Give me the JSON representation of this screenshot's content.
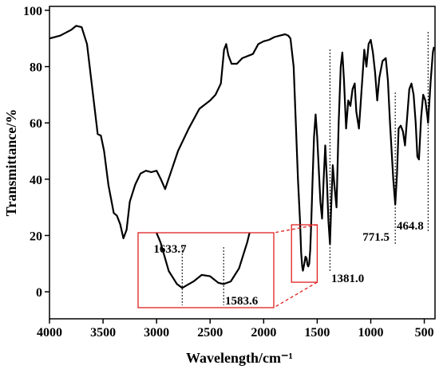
{
  "chart_data": {
    "type": "line",
    "xlabel": "Wavelength/cm⁻¹",
    "ylabel": "Transmittance/%",
    "xlim": [
      4000,
      400
    ],
    "ylim": [
      -9.6,
      101.4
    ],
    "xticks": [
      4000,
      3500,
      3000,
      2500,
      2000,
      1500,
      1000,
      500
    ],
    "yticks": [
      0,
      20,
      40,
      60,
      80,
      100
    ],
    "series": [
      {
        "color": "#000000",
        "x": [
          4000,
          3900,
          3800,
          3750,
          3700,
          3650,
          3600,
          3550,
          3520,
          3490,
          3450,
          3400,
          3370,
          3340,
          3310,
          3280,
          3250,
          3200,
          3150,
          3100,
          3050,
          3000,
          2960,
          2920,
          2880,
          2800,
          2700,
          2600,
          2500,
          2450,
          2400,
          2370,
          2350,
          2330,
          2300,
          2250,
          2200,
          2100,
          2050,
          2000,
          1950,
          1900,
          1850,
          1800,
          1770,
          1750,
          1720,
          1700,
          1680,
          1660,
          1650,
          1640,
          1633.7,
          1620,
          1610,
          1600,
          1590,
          1583.6,
          1575,
          1565,
          1555,
          1545,
          1530,
          1515,
          1500,
          1470,
          1455,
          1440,
          1425,
          1410,
          1395,
          1381,
          1370,
          1355,
          1340,
          1320,
          1300,
          1280,
          1265,
          1250,
          1230,
          1210,
          1190,
          1170,
          1150,
          1135,
          1110,
          1080,
          1060,
          1040,
          1020,
          1000,
          980,
          960,
          940,
          920,
          890,
          860,
          840,
          820,
          790,
          771.5,
          755,
          740,
          720,
          700,
          680,
          660,
          640,
          620,
          600,
          580,
          565,
          550,
          530,
          510,
          490,
          470,
          464.8,
          440,
          420,
          410
        ],
        "values": [
          90,
          91,
          93,
          94.5,
          94,
          88,
          72,
          56,
          55.5,
          50,
          38,
          28,
          27,
          24,
          19,
          22,
          32,
          38,
          42,
          43,
          42.5,
          43,
          40,
          36.5,
          41,
          50,
          58,
          65,
          68,
          70,
          74,
          86,
          88,
          84,
          81,
          81,
          83,
          84.5,
          88,
          89,
          89.5,
          90.5,
          91,
          91.5,
          91,
          90,
          80,
          60,
          40,
          25,
          14,
          9,
          7.5,
          10,
          12.5,
          12,
          9.5,
          9,
          10,
          15,
          25,
          38,
          55,
          63,
          55,
          32,
          26,
          40,
          52,
          40,
          25,
          17,
          30,
          45,
          38,
          30,
          60,
          80,
          85,
          75,
          58,
          68,
          66,
          72,
          74,
          64,
          58,
          75,
          86,
          80,
          88,
          89.5,
          85,
          78,
          68,
          76,
          82,
          83,
          75,
          60,
          40,
          31,
          42,
          58,
          59,
          57,
          52,
          62,
          72,
          74,
          70,
          60,
          48,
          47,
          62,
          70,
          68,
          62,
          60,
          75,
          85,
          87
        ]
      }
    ],
    "annotations": [
      {
        "x": 1633.7,
        "text": "1633.7"
      },
      {
        "x": 1583.6,
        "text": "1583.6"
      },
      {
        "x": 1381.0,
        "text": "1381.0"
      },
      {
        "x": 771.5,
        "text": "771.5"
      },
      {
        "x": 464.8,
        "text": "464.8"
      }
    ],
    "inset": {
      "xlim": [
        1687,
        1523
      ],
      "ylim": [
        0,
        28.6
      ],
      "zoom_box": {
        "xlim": [
          1740,
          1500
        ],
        "ylim": [
          3.4,
          23.8
        ]
      }
    }
  }
}
